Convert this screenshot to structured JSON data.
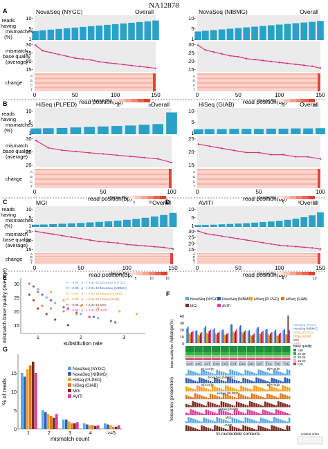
{
  "figure_title": "NA12878",
  "panel_letters": [
    "A",
    "B",
    "C",
    "D",
    "E",
    "F",
    "G"
  ],
  "colors": {
    "bar_blue": "#2aa1c9",
    "line_pink": "#d6337f",
    "heat_light": "#fbd2c9",
    "heat_dark": "#e4453a",
    "grid_bg": "#ebebeb",
    "novaseq_nygc": "#5aa9e6",
    "novaseq_nibmg": "#2f5fb3",
    "hiseq_plped": "#f4a11f",
    "hiseq_giab": "#e07a1f",
    "mgi": "#7a2a1f",
    "aviti": "#e8399b"
  },
  "row_labels": {
    "reads_mismatch": "reads having mismatches (%)",
    "base_quality": "mismatch base quality (average)",
    "change": "change"
  },
  "axis_label": "read position(bp)",
  "legend_title": "change (%)",
  "panels": [
    {
      "letter": "A",
      "name": "NovaSeq (NYGC)",
      "tag": "Overall",
      "x_ticks": [
        "0",
        "50",
        "100",
        "150"
      ],
      "legend_ticks": [
        "10",
        "20"
      ]
    },
    {
      "letter": "",
      "name": "NovaSeq (NIBMG)",
      "tag": "Overall",
      "x_ticks": [
        "0",
        "50",
        "100",
        "150"
      ],
      "legend_ticks": [
        "10",
        "20"
      ]
    },
    {
      "letter": "B",
      "name": "HiSeq (PLPED)",
      "tag": "Overall",
      "x_ticks": [
        "0",
        "50",
        "100"
      ],
      "legend_ticks": [
        "6",
        "10",
        "14"
      ]
    },
    {
      "letter": "",
      "name": "HiSeq (GIAB)",
      "tag": "Overall",
      "x_ticks": [
        "0",
        "50",
        "100"
      ],
      "legend_ticks": [
        "5",
        "9",
        "13"
      ]
    },
    {
      "letter": "C",
      "name": "MGI",
      "tag": "Overall",
      "x_ticks": [
        "0",
        "50",
        "100",
        "150"
      ],
      "legend_ticks": [
        "5",
        "10",
        "15"
      ]
    },
    {
      "letter": "D",
      "name": "AVITI",
      "tag": "Overall",
      "x_ticks": [
        "0",
        "50",
        "100",
        "150"
      ],
      "legend_ticks": [
        "4",
        "12"
      ]
    }
  ],
  "chart_data": [
    {
      "panel": "A (left)",
      "type": "bar",
      "title": "NovaSeq (NYGC)",
      "xlabel": "read position(bp)",
      "y_ticks": [
        "10-",
        "5-",
        "1-"
      ],
      "x": [
        1,
        10,
        20,
        30,
        40,
        50,
        60,
        70,
        80,
        90,
        100,
        110,
        120,
        130,
        140,
        150
      ],
      "reads_mismatch_pct": [
        4,
        4.3,
        4.6,
        4.9,
        5.2,
        5.5,
        5.8,
        6.1,
        6.4,
        6.7,
        7.0,
        7.3,
        7.6,
        7.9,
        8.2,
        8.6
      ],
      "base_quality_ticks": [
        "30-",
        "25-",
        "20-",
        "15-"
      ],
      "base_quality": [
        29,
        26,
        25,
        24,
        23,
        22,
        21.5,
        21,
        20,
        19.5,
        19,
        18.5,
        18,
        17.5,
        17,
        16.5
      ]
    },
    {
      "panel": "A (right)",
      "type": "bar",
      "title": "NovaSeq (NIBMG)",
      "xlabel": "read position(bp)",
      "y_ticks": [
        "10-",
        "5-",
        "1-"
      ],
      "x": [
        1,
        10,
        20,
        30,
        40,
        50,
        60,
        70,
        80,
        90,
        100,
        110,
        120,
        130,
        140,
        150
      ],
      "reads_mismatch_pct": [
        3.8,
        4.1,
        4.4,
        4.7,
        5.0,
        5.3,
        5.6,
        5.9,
        6.2,
        6.5,
        6.8,
        7.1,
        7.4,
        7.7,
        8.0,
        8.4
      ],
      "base_quality_ticks": [
        "30-",
        "25-",
        "20-",
        "15-"
      ],
      "base_quality": [
        28,
        25.5,
        24.5,
        23.5,
        22.5,
        22,
        21,
        20.5,
        20,
        19.5,
        19,
        18.5,
        18,
        17.5,
        17,
        16
      ]
    },
    {
      "panel": "B (left)",
      "type": "bar",
      "title": "HiSeq (PLPED)",
      "xlabel": "read position(bp)",
      "y_ticks": [
        "10-",
        "5-",
        "1-"
      ],
      "x": [
        1,
        10,
        20,
        30,
        40,
        50,
        60,
        70,
        80,
        90,
        100
      ],
      "reads_mismatch_pct": [
        2.4,
        2.5,
        2.6,
        2.8,
        3.0,
        3.2,
        3.4,
        3.6,
        3.9,
        4.2,
        9.0
      ],
      "base_quality_ticks": [
        "30-",
        "25-",
        "20-"
      ],
      "base_quality": [
        28,
        25,
        24,
        23.5,
        23,
        22.5,
        22,
        21.5,
        21,
        20.5,
        19
      ]
    },
    {
      "panel": "B (right)",
      "type": "bar",
      "title": "HiSeq (GIAB)",
      "xlabel": "read position(bp)",
      "y_ticks": [
        "10-",
        "5-",
        "1-"
      ],
      "x": [
        1,
        10,
        20,
        30,
        40,
        50,
        60,
        70,
        80,
        90,
        100
      ],
      "reads_mismatch_pct": [
        2.0,
        2.1,
        2.1,
        2.2,
        2.2,
        2.2,
        2.3,
        2.3,
        2.4,
        2.4,
        2.5
      ],
      "base_quality_ticks": [
        "25-",
        "20-",
        "15-"
      ],
      "base_quality": [
        21,
        20.5,
        20,
        19.5,
        19,
        19,
        18.5,
        18.5,
        18,
        18,
        17.5
      ]
    },
    {
      "panel": "C",
      "type": "bar",
      "title": "MGI",
      "xlabel": "read position(bp)",
      "y_ticks": [
        "10-",
        "5-",
        "1-"
      ],
      "x": [
        1,
        10,
        20,
        30,
        40,
        50,
        60,
        70,
        80,
        90,
        100,
        110,
        120,
        130,
        140,
        150
      ],
      "reads_mismatch_pct": [
        1.2,
        1.3,
        1.5,
        1.7,
        1.9,
        2.1,
        2.4,
        2.7,
        3.0,
        3.4,
        3.8,
        4.3,
        4.9,
        5.6,
        6.4,
        7.5
      ],
      "base_quality_ticks": [
        "25-",
        "20-",
        "15-"
      ],
      "base_quality": [
        26,
        25,
        24,
        23,
        22,
        21,
        20,
        19,
        18.5,
        18,
        17,
        16.5,
        16,
        15.5,
        15,
        14
      ]
    },
    {
      "panel": "D",
      "type": "bar",
      "title": "AVITI",
      "xlabel": "read position(bp)",
      "y_ticks": [
        "10-",
        "5-",
        "1-"
      ],
      "x": [
        1,
        10,
        20,
        30,
        40,
        50,
        60,
        70,
        80,
        90,
        100,
        110,
        120,
        130,
        140,
        150
      ],
      "reads_mismatch_pct": [
        1.0,
        1.1,
        1.2,
        1.4,
        1.6,
        1.8,
        2.0,
        2.3,
        2.6,
        2.9,
        3.3,
        3.8,
        4.4,
        5.2,
        6.2,
        7.8
      ],
      "base_quality_ticks": [
        "30-",
        "25-",
        "20-",
        "15-"
      ],
      "base_quality": [
        30,
        28,
        27,
        26,
        25,
        24,
        23,
        22,
        21,
        20,
        19,
        18.5,
        18,
        17.5,
        17,
        16
      ]
    },
    {
      "panel": "E",
      "type": "scatter",
      "xlabel": "substitution rate",
      "ylabel": "mismatch base quality (average)",
      "x_ticks": [
        "1",
        "2",
        "3"
      ],
      "y_ticks": [
        "30",
        "25",
        "20",
        "15"
      ],
      "xlim": [
        0.6,
        3.5
      ],
      "ylim": [
        12,
        32
      ],
      "legend": [
        "R : -0.94 , p : < 2.2e-16 NovaSeq (NYGC)",
        "R : -0.95 , p : < 2.2e-16 NovaSeq (NIBMG)",
        "R : -0.84 , p : < 2.2e-16 HiSeq (PLPED)",
        "R : -0.95 , p : < 2.2e-16 HiSeq (GIAB)",
        "R : -0.88 , p : < 2.2e-16 MGI",
        "R : -0.95 , p : < 2.2e-16 AVITI"
      ],
      "series": [
        {
          "name": "NovaSeq (NYGC)",
          "x": [
            1.0,
            1.2,
            1.4,
            1.7,
            2.0,
            2.4,
            2.8
          ],
          "y": [
            28,
            25,
            23,
            21,
            19,
            17.5,
            16
          ]
        },
        {
          "name": "NovaSeq (NIBMG)",
          "x": [
            0.9,
            1.1,
            1.3,
            1.6,
            1.9,
            2.3,
            2.7
          ],
          "y": [
            29,
            26,
            24,
            21.5,
            19.5,
            18,
            16.5
          ]
        },
        {
          "name": "HiSeq (PLPED)",
          "x": [
            1.3,
            1.6,
            2.0,
            2.4,
            2.9,
            3.3
          ],
          "y": [
            27,
            24,
            22,
            21,
            20,
            19
          ]
        },
        {
          "name": "HiSeq (GIAB)",
          "x": [
            1.1,
            1.3,
            1.6,
            1.9,
            2.2
          ],
          "y": [
            22,
            21,
            20,
            19,
            18
          ]
        },
        {
          "name": "MGI",
          "x": [
            0.8,
            0.9,
            1.0,
            1.2,
            1.4,
            1.7
          ],
          "y": [
            26,
            24,
            21,
            19,
            17,
            15
          ]
        },
        {
          "name": "AVITI",
          "x": [
            0.8,
            1.0,
            1.3,
            1.7,
            2.2,
            2.8
          ],
          "y": [
            30,
            27,
            24,
            21,
            18,
            16
          ]
        }
      ]
    },
    {
      "panel": "F",
      "type": "bar",
      "ylabel": "change(%)",
      "y_ticks": [
        "40",
        "30",
        "20",
        "10",
        "0"
      ],
      "categories": [
        "A>C",
        "A>G",
        "A>T",
        "C>A",
        "C>G",
        "C>T",
        "G>A",
        "G>C",
        "G>T",
        "T>A",
        "T>C",
        "T>G"
      ],
      "series": [
        {
          "name": "NovaSeq (NYGC)",
          "values": [
            24,
            20,
            25,
            22,
            21,
            30,
            27,
            19,
            24,
            22,
            19,
            21
          ]
        },
        {
          "name": "NovaSeq (NIBMG)",
          "values": [
            27,
            21,
            28,
            24,
            22,
            31,
            29,
            21,
            26,
            23,
            22,
            23
          ]
        },
        {
          "name": "HiSeq (PLPED)",
          "values": [
            16,
            14,
            17,
            16,
            14,
            19,
            18,
            13,
            16,
            15,
            13,
            15
          ]
        },
        {
          "name": "HiSeq (GIAB)",
          "values": [
            15,
            12,
            15,
            14,
            13,
            17,
            16,
            12,
            15,
            13,
            12,
            14
          ]
        },
        {
          "name": "MGI",
          "values": [
            18,
            16,
            20,
            17,
            15,
            20,
            19,
            14,
            18,
            16,
            15,
            45
          ]
        },
        {
          "name": "AVITI",
          "values": [
            20,
            18,
            22,
            19,
            17,
            23,
            21,
            16,
            20,
            18,
            17,
            21
          ]
        }
      ],
      "base_quality_legend_title": "base quality",
      "base_quality_legend": [
        ">30",
        "25-30",
        "20-25",
        "15-20",
        "<15"
      ],
      "base_quality_label": "base quality bin (%)",
      "frequency_label": "frequency (proportion)",
      "subpanel_titles": [
        "C[A>C]C",
        "G[T>G]G",
        "NovaSeq (NIBMG)",
        "C[A>C]C",
        "G[T>G]G",
        "HiSeq (PLPED)",
        "HiSeq (GIAB)",
        "MGI",
        "AVITI"
      ],
      "xlabel": "tri-nucleotide contexts",
      "context_order_label": "context order"
    },
    {
      "panel": "G",
      "type": "bar",
      "xlabel": "mismatch count",
      "ylabel": "% of reads",
      "categories": [
        "1",
        "2",
        "3",
        "4",
        ">=5"
      ],
      "y_ticks": [
        "15",
        "10",
        "5",
        "0"
      ],
      "ylim": [
        0,
        20
      ],
      "series": [
        {
          "name": "NovaSeq (NYGC)",
          "values": [
            15,
            5,
            2.5,
            1.5,
            1.5
          ]
        },
        {
          "name": "NovaSeq (NIBMG)",
          "values": [
            14,
            4.5,
            2.5,
            1.2,
            1.2
          ]
        },
        {
          "name": "HiSeq (PLPED)",
          "values": [
            16,
            4,
            2,
            1,
            1
          ]
        },
        {
          "name": "HiSeq (GIAB)",
          "values": [
            17,
            3.5,
            1.5,
            1,
            0.5
          ]
        },
        {
          "name": "MGI",
          "values": [
            18,
            3,
            1.5,
            0.8,
            0.6
          ]
        },
        {
          "name": "AVITI",
          "values": [
            15,
            4,
            1.8,
            1,
            1
          ]
        }
      ]
    }
  ]
}
